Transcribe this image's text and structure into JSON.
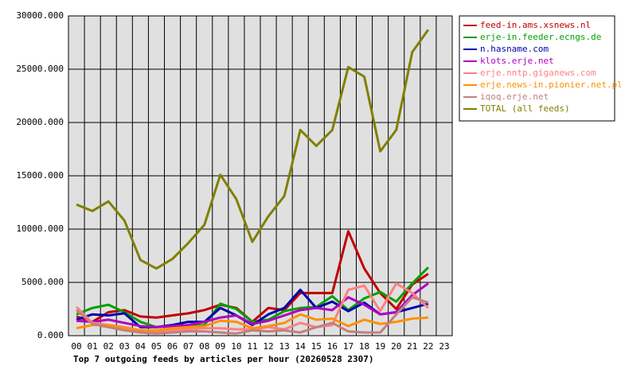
{
  "chart_data": {
    "type": "line",
    "title": "Top 7 outgoing feeds by articles per hour (20260528 2307)",
    "categories": [
      "00",
      "01",
      "02",
      "03",
      "04",
      "05",
      "06",
      "07",
      "08",
      "09",
      "10",
      "11",
      "12",
      "13",
      "14",
      "15",
      "16",
      "17",
      "18",
      "19",
      "20",
      "21",
      "22",
      "23"
    ],
    "series": [
      {
        "name": "feed-in.ams.xsnews.nl",
        "color": "#c00000",
        "values": [
          1800,
          1300,
          2200,
          2400,
          1800,
          1700,
          1900,
          2100,
          2400,
          2900,
          2600,
          1300,
          2600,
          2400,
          4000,
          4000,
          4000,
          9800,
          6300,
          4000,
          2500,
          4800,
          5800,
          null
        ]
      },
      {
        "name": "erje-in.feeder.ecngs.de",
        "color": "#00a000",
        "values": [
          2000,
          2600,
          2900,
          2200,
          1300,
          800,
          900,
          900,
          1000,
          3000,
          2500,
          1300,
          1500,
          2300,
          2600,
          2700,
          3700,
          2400,
          3500,
          4100,
          3200,
          4900,
          6400,
          null
        ]
      },
      {
        "name": "n.hasname.com",
        "color": "#0000b0",
        "values": [
          1500,
          2000,
          1900,
          2100,
          800,
          800,
          1000,
          1300,
          1300,
          2600,
          1900,
          1000,
          2000,
          2600,
          4300,
          2600,
          3200,
          2300,
          3100,
          2000,
          2200,
          2600,
          3000,
          null
        ]
      },
      {
        "name": "klots.erje.net",
        "color": "#b000c0",
        "values": [
          1400,
          1300,
          1500,
          1200,
          900,
          800,
          900,
          1000,
          1300,
          1700,
          1900,
          1100,
          1400,
          1900,
          2400,
          2600,
          2400,
          3600,
          2900,
          2000,
          2200,
          3800,
          4900,
          null
        ]
      },
      {
        "name": "erje.nntp.giganews.com",
        "color": "#ff8080",
        "values": [
          2700,
          1200,
          1000,
          800,
          500,
          400,
          500,
          600,
          700,
          700,
          600,
          600,
          800,
          600,
          1200,
          800,
          1000,
          4300,
          4700,
          2300,
          4900,
          4000,
          2600,
          null
        ]
      },
      {
        "name": "erje.news-in.pionier.net.pl",
        "color": "#ff9000",
        "values": [
          700,
          1000,
          1000,
          700,
          500,
          500,
          700,
          800,
          900,
          1400,
          1300,
          700,
          900,
          1200,
          2000,
          1500,
          1600,
          900,
          1500,
          1100,
          1300,
          1600,
          1700,
          null
        ]
      },
      {
        "name": "iqoq.erje.net",
        "color": "#c08080",
        "values": [
          2400,
          1100,
          800,
          500,
          300,
          200,
          300,
          400,
          400,
          300,
          200,
          500,
          400,
          500,
          300,
          800,
          1200,
          400,
          300,
          300,
          2000,
          3600,
          3100,
          null
        ]
      },
      {
        "name": "TOTAL (all feeds)",
        "color": "#808000",
        "values": [
          12300,
          11700,
          12600,
          10800,
          7100,
          6300,
          7200,
          8700,
          10400,
          15100,
          12800,
          8800,
          11200,
          13100,
          19300,
          17800,
          19300,
          25200,
          24300,
          17300,
          19300,
          26600,
          28700,
          null
        ]
      }
    ],
    "ylim": [
      0,
      30000
    ],
    "yticks": [
      {
        "value": 0,
        "label": "0.000"
      },
      {
        "value": 5000,
        "label": "5000.000"
      },
      {
        "value": 10000,
        "label": "10000.000"
      },
      {
        "value": 15000,
        "label": "15000.000"
      },
      {
        "value": 20000,
        "label": "20000.000"
      },
      {
        "value": 25000,
        "label": "25000.000"
      },
      {
        "value": 30000,
        "label": "30000.000"
      }
    ],
    "grid": true,
    "legend": "top-right"
  }
}
